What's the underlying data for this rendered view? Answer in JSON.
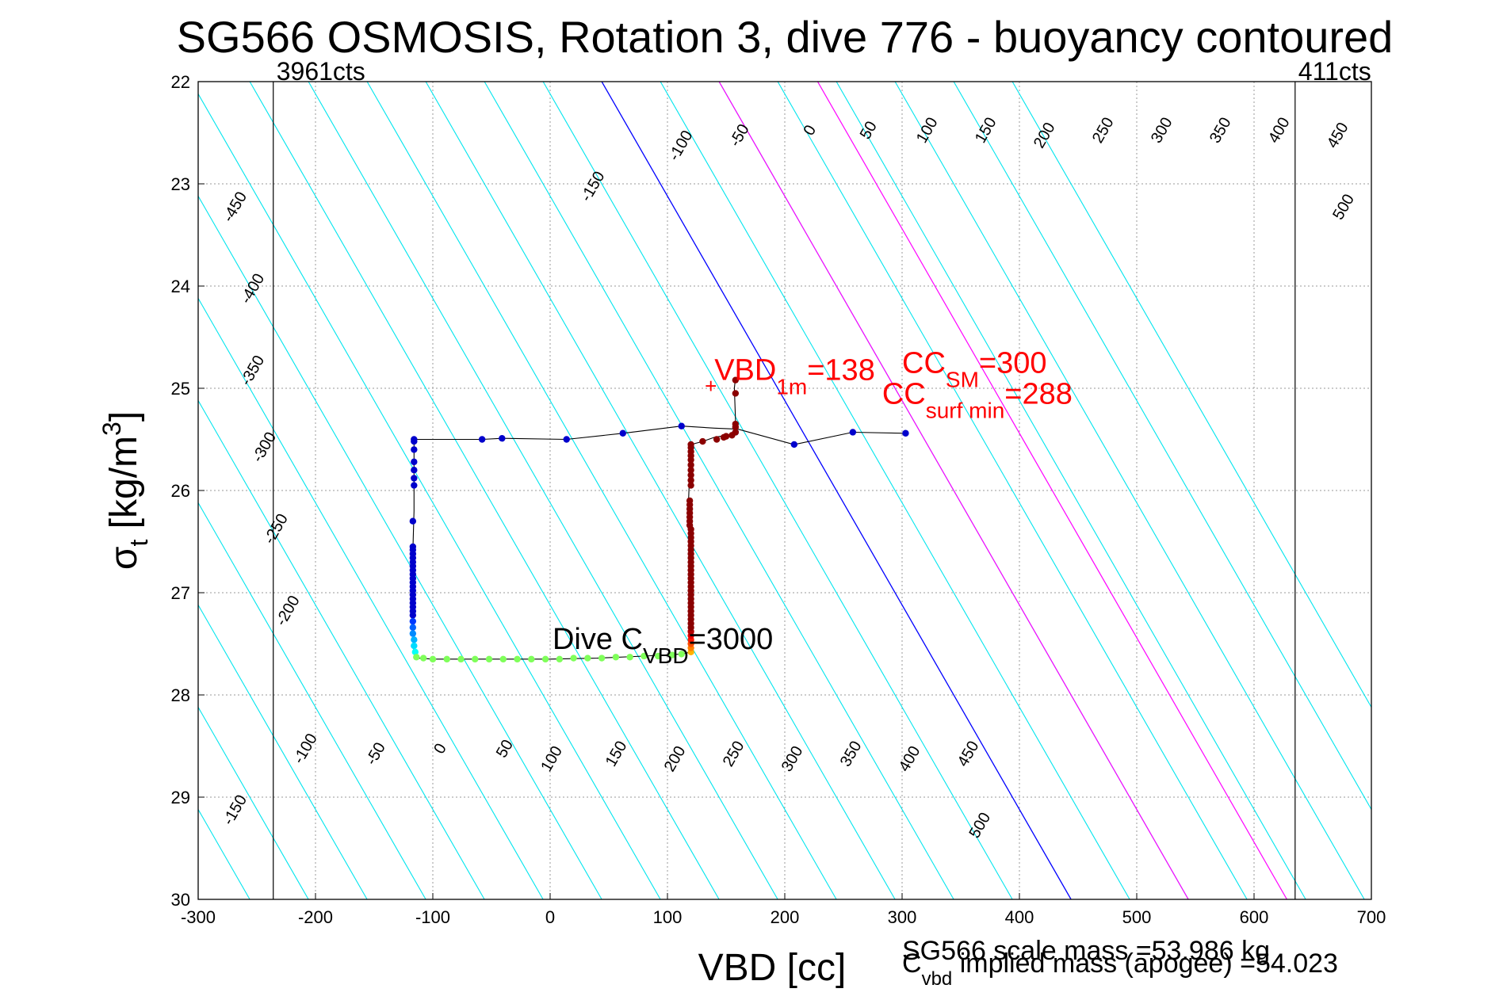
{
  "chart_data": {
    "type": "scatter",
    "title": "SG566 OSMOSIS, Rotation 3, dive 776 - buoyancy contoured",
    "xlabel": "VBD [cc]",
    "ylabel_main": "σ",
    "ylabel_sub": "t",
    "ylabel_unit": " [kg/m",
    "ylabel_sup": "3",
    "ylabel_close": "]",
    "xlim": [
      -300,
      700
    ],
    "ylim": [
      22,
      30
    ],
    "y_reversed": true,
    "xticks": [
      -300,
      -200,
      -100,
      0,
      100,
      200,
      300,
      400,
      500,
      600,
      700
    ],
    "yticks": [
      22,
      23,
      24,
      25,
      26,
      27,
      28,
      29,
      30
    ],
    "grid": true,
    "colors": {
      "contour": "#00e5ee",
      "zero_contour": "#0000ff",
      "cc_contours": "#ff00ff",
      "annotation": "#ff0000",
      "profile_line": "#000000"
    },
    "buoyancy_contours": {
      "slope_cc_per_sigma": 50.0,
      "reference_sigma": 25.0,
      "x_at_reference_zero": 194,
      "levels": [
        -500,
        -450,
        -400,
        -350,
        -300,
        -250,
        -200,
        -150,
        -100,
        -50,
        0,
        50,
        100,
        150,
        200,
        250,
        300,
        350,
        400,
        450,
        500,
        550,
        600,
        650,
        700,
        750,
        800,
        850
      ],
      "magenta_x_at_reference": [
        294,
        378
      ]
    },
    "contour_labels_top": [
      {
        "text": "-450",
        "x": -265,
        "y": 23.25
      },
      {
        "text": "-400",
        "x": -250,
        "y": 24.05
      },
      {
        "text": "-350",
        "x": -250,
        "y": 24.85
      },
      {
        "text": "-300",
        "x": -240,
        "y": 25.6
      },
      {
        "text": "-250",
        "x": -230,
        "y": 26.4
      },
      {
        "text": "-200",
        "x": -220,
        "y": 27.2
      },
      {
        "text": "-150",
        "x": 40,
        "y": 23.05
      },
      {
        "text": "-100",
        "x": 115,
        "y": 22.65
      },
      {
        "text": "-50",
        "x": 165,
        "y": 22.55
      },
      {
        "text": "0",
        "x": 225,
        "y": 22.5
      },
      {
        "text": "50",
        "x": 275,
        "y": 22.5
      },
      {
        "text": "100",
        "x": 325,
        "y": 22.5
      },
      {
        "text": "150",
        "x": 375,
        "y": 22.5
      },
      {
        "text": "200",
        "x": 425,
        "y": 22.55
      },
      {
        "text": "250",
        "x": 475,
        "y": 22.5
      },
      {
        "text": "300",
        "x": 525,
        "y": 22.5
      },
      {
        "text": "350",
        "x": 575,
        "y": 22.5
      },
      {
        "text": "400",
        "x": 625,
        "y": 22.5
      },
      {
        "text": "450",
        "x": 675,
        "y": 22.55
      },
      {
        "text": "500",
        "x": 680,
        "y": 23.25
      }
    ],
    "contour_labels_bottom": [
      {
        "text": "-150",
        "x": -265,
        "y": 29.15
      },
      {
        "text": "-100",
        "x": -205,
        "y": 28.55
      },
      {
        "text": "-50",
        "x": -145,
        "y": 28.6
      },
      {
        "text": "0",
        "x": -90,
        "y": 28.55
      },
      {
        "text": "50",
        "x": -35,
        "y": 28.55
      },
      {
        "text": "100",
        "x": 5,
        "y": 28.65
      },
      {
        "text": "150",
        "x": 60,
        "y": 28.6
      },
      {
        "text": "200",
        "x": 110,
        "y": 28.65
      },
      {
        "text": "250",
        "x": 160,
        "y": 28.6
      },
      {
        "text": "300",
        "x": 210,
        "y": 28.65
      },
      {
        "text": "350",
        "x": 260,
        "y": 28.6
      },
      {
        "text": "400",
        "x": 310,
        "y": 28.65
      },
      {
        "text": "450",
        "x": 360,
        "y": 28.6
      },
      {
        "text": "500",
        "x": 370,
        "y": 29.3
      }
    ],
    "limit_lines": [
      {
        "label": "3961cts",
        "x": -236
      },
      {
        "label": "411cts",
        "x": 635
      }
    ],
    "profile_path": [
      [
        303,
        25.44
      ],
      [
        258,
        25.43
      ],
      [
        208,
        25.55
      ],
      [
        160,
        25.4
      ],
      [
        140,
        25.39
      ],
      [
        112,
        25.37
      ],
      [
        62,
        25.44
      ],
      [
        14,
        25.5
      ],
      [
        -41,
        25.49
      ],
      [
        -58,
        25.5
      ],
      [
        -116,
        25.5
      ],
      [
        -116,
        25.8
      ],
      [
        -116,
        26.2
      ],
      [
        -117,
        26.6
      ],
      [
        -118,
        27.0
      ],
      [
        -117,
        27.4
      ],
      [
        -116,
        27.6
      ],
      [
        -112,
        27.64
      ],
      [
        -100,
        27.65
      ],
      [
        -60,
        27.65
      ],
      [
        0,
        27.65
      ],
      [
        40,
        27.64
      ],
      [
        80,
        27.62
      ],
      [
        112,
        27.6
      ],
      [
        120,
        27.58
      ],
      [
        120,
        27.0
      ],
      [
        120,
        26.5
      ],
      [
        118,
        26.1
      ],
      [
        119,
        25.8
      ],
      [
        120,
        25.55
      ],
      [
        130,
        25.52
      ],
      [
        140,
        25.48
      ],
      [
        155,
        25.45
      ],
      [
        158,
        25.4
      ],
      [
        158,
        25.3
      ],
      [
        157,
        25.0
      ],
      [
        158,
        24.9
      ]
    ],
    "dive_points": [
      [
        303,
        25.44
      ],
      [
        258,
        25.43
      ],
      [
        208,
        25.55
      ],
      [
        158,
        25.43
      ],
      [
        112,
        25.37
      ],
      [
        62,
        25.44
      ],
      [
        14,
        25.5
      ],
      [
        -41,
        25.49
      ],
      [
        -58,
        25.5
      ],
      [
        -116,
        25.52
      ],
      [
        -116,
        25.5
      ],
      [
        -116,
        25.6
      ],
      [
        -116,
        25.72
      ],
      [
        -116,
        25.8
      ],
      [
        -116,
        25.88
      ],
      [
        -116,
        25.95
      ],
      [
        -117,
        26.3
      ],
      [
        -117,
        26.55
      ],
      [
        -117,
        26.58
      ],
      [
        -117,
        26.62
      ],
      [
        -117,
        26.66
      ],
      [
        -117,
        26.7
      ],
      [
        -117,
        26.74
      ],
      [
        -117,
        26.78
      ],
      [
        -117,
        26.82
      ],
      [
        -117,
        26.86
      ],
      [
        -117,
        26.9
      ],
      [
        -117,
        26.94
      ],
      [
        -117,
        26.98
      ],
      [
        -117,
        27.02
      ],
      [
        -117,
        27.06
      ],
      [
        -117,
        27.1
      ],
      [
        -117,
        27.14
      ],
      [
        -117,
        27.18
      ],
      [
        -117,
        27.22
      ]
    ],
    "bottom_points": [
      [
        -117,
        27.28
      ],
      [
        -117,
        27.34
      ],
      [
        -117,
        27.4
      ],
      [
        -116,
        27.46
      ],
      [
        -116,
        27.52
      ],
      [
        -115,
        27.58
      ],
      [
        -114,
        27.63
      ],
      [
        -108,
        27.64
      ],
      [
        -100,
        27.65
      ],
      [
        -88,
        27.65
      ],
      [
        -76,
        27.65
      ],
      [
        -64,
        27.65
      ],
      [
        -52,
        27.65
      ],
      [
        -40,
        27.65
      ],
      [
        -28,
        27.65
      ],
      [
        -16,
        27.65
      ],
      [
        -4,
        27.65
      ],
      [
        8,
        27.65
      ],
      [
        20,
        27.64
      ],
      [
        32,
        27.64
      ],
      [
        44,
        27.64
      ],
      [
        56,
        27.63
      ],
      [
        68,
        27.63
      ],
      [
        80,
        27.62
      ],
      [
        92,
        27.62
      ],
      [
        104,
        27.61
      ],
      [
        112,
        27.6
      ]
    ],
    "climb_points": [
      [
        120,
        27.58
      ],
      [
        120,
        27.54
      ],
      [
        120,
        27.5
      ],
      [
        120,
        27.46
      ],
      [
        120,
        27.42
      ],
      [
        120,
        27.38
      ],
      [
        120,
        27.34
      ],
      [
        120,
        27.3
      ],
      [
        120,
        27.26
      ],
      [
        120,
        27.22
      ],
      [
        120,
        27.18
      ],
      [
        120,
        27.14
      ],
      [
        120,
        27.1
      ],
      [
        120,
        27.06
      ],
      [
        120,
        27.02
      ],
      [
        120,
        26.98
      ],
      [
        120,
        26.94
      ],
      [
        120,
        26.9
      ],
      [
        120,
        26.86
      ],
      [
        120,
        26.82
      ],
      [
        120,
        26.78
      ],
      [
        120,
        26.74
      ],
      [
        120,
        26.7
      ],
      [
        120,
        26.66
      ],
      [
        120,
        26.62
      ],
      [
        120,
        26.58
      ],
      [
        120,
        26.54
      ],
      [
        120,
        26.5
      ],
      [
        120,
        26.46
      ],
      [
        120,
        26.42
      ],
      [
        120,
        26.38
      ],
      [
        119,
        26.34
      ],
      [
        119,
        26.3
      ],
      [
        119,
        26.26
      ],
      [
        119,
        26.22
      ],
      [
        119,
        26.18
      ],
      [
        119,
        26.14
      ],
      [
        119,
        26.1
      ],
      [
        120,
        25.95
      ],
      [
        120,
        25.9
      ],
      [
        120,
        25.85
      ],
      [
        120,
        25.8
      ],
      [
        120,
        25.75
      ],
      [
        120,
        25.7
      ],
      [
        120,
        25.66
      ],
      [
        120,
        25.62
      ],
      [
        120,
        25.58
      ],
      [
        120,
        25.55
      ],
      [
        130,
        25.52
      ],
      [
        142,
        25.5
      ],
      [
        148,
        25.48
      ],
      [
        150,
        25.47
      ],
      [
        155,
        25.46
      ],
      [
        158,
        25.43
      ],
      [
        158,
        25.38
      ],
      [
        158,
        25.35
      ],
      [
        158,
        25.05
      ],
      [
        158,
        24.92
      ]
    ],
    "annotations": [
      {
        "text": "+",
        "x": 137,
        "y": 24.97,
        "color": "#ff0000",
        "kind": "plus"
      },
      {
        "main": "VBD",
        "sub": "1m",
        "tail": "=138",
        "x": 140,
        "y": 24.92,
        "color": "#ff0000"
      },
      {
        "main": "CC",
        "sub": "SM",
        "tail": "=300",
        "x": 300,
        "y": 24.85,
        "color": "#ff0000"
      },
      {
        "main": "CC",
        "sub": "surf min",
        "tail": "=288",
        "x": 283,
        "y": 25.15,
        "color": "#ff0000"
      },
      {
        "main": "Dive C",
        "sub": "VBD",
        "tail": "=3000",
        "x": 2,
        "y": 27.55,
        "color": "#000000"
      }
    ],
    "footnotes": [
      "SG566 scale mass =53.986 kg",
      "C",
      "vbd",
      " implied mass (apogee) =54.023"
    ]
  }
}
